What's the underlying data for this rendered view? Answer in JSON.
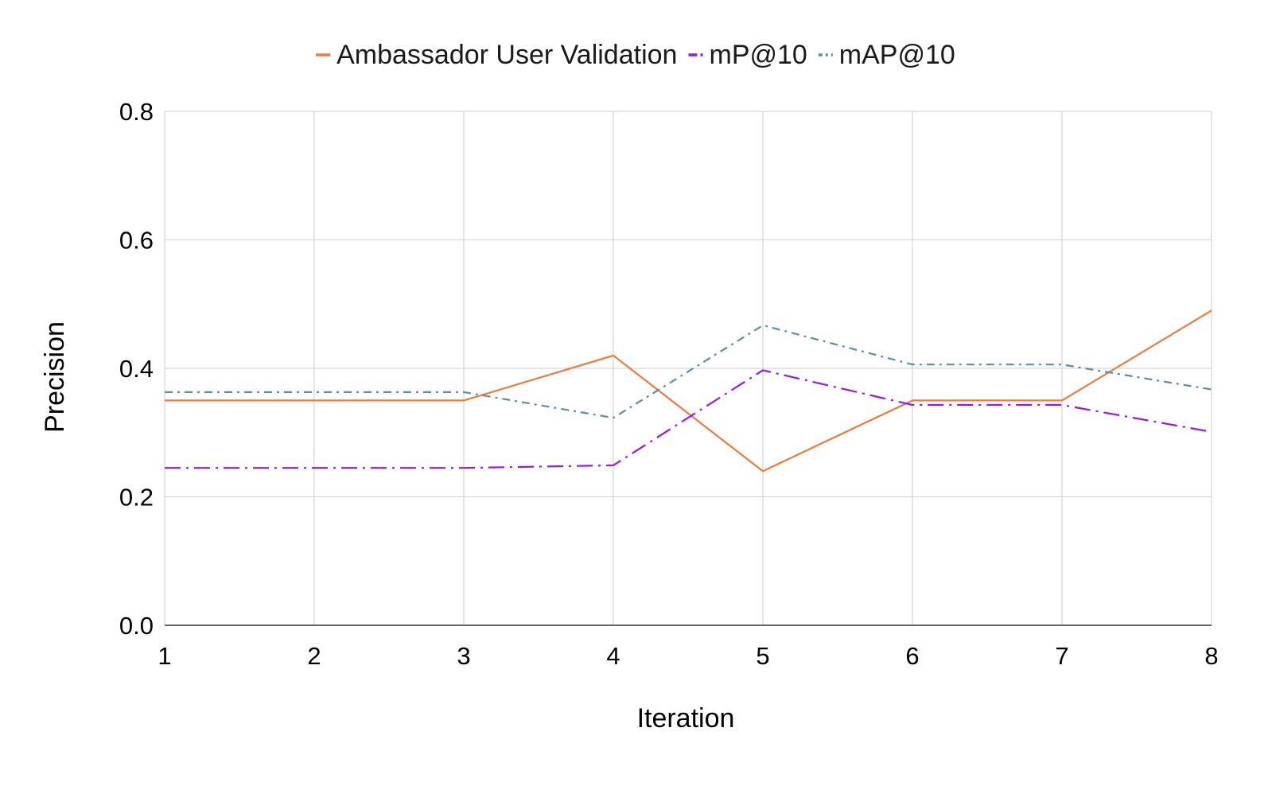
{
  "chart_data": {
    "type": "line",
    "title": "",
    "xlabel": "Iteration",
    "ylabel": "Precision",
    "x": [
      1,
      2,
      3,
      4,
      5,
      6,
      7,
      8
    ],
    "x_ticks": [
      "1",
      "2",
      "3",
      "4",
      "5",
      "6",
      "7",
      "8"
    ],
    "y_ticks": [
      "0.0",
      "0.2",
      "0.4",
      "0.6",
      "0.8"
    ],
    "y_tick_values": [
      0.0,
      0.2,
      0.4,
      0.6,
      0.8
    ],
    "xlim": [
      1,
      8
    ],
    "ylim": [
      0,
      0.8
    ],
    "grid": true,
    "legend_position": "top",
    "series": [
      {
        "name": "Ambassador User Validation",
        "color": "#f07a3c",
        "style": "solid",
        "values": [
          0.35,
          0.35,
          0.35,
          0.42,
          0.24,
          0.35,
          0.35,
          0.49
        ]
      },
      {
        "name": "mP@10",
        "color": "#9b16e8",
        "style": "dash-dot",
        "values": [
          0.245,
          0.245,
          0.245,
          0.249,
          0.397,
          0.343,
          0.343,
          0.301
        ]
      },
      {
        "name": "mAP@10",
        "color": "#5b8fa8",
        "style": "dash-dot-dense",
        "values": [
          0.363,
          0.363,
          0.363,
          0.323,
          0.467,
          0.406,
          0.406,
          0.367
        ]
      }
    ]
  }
}
